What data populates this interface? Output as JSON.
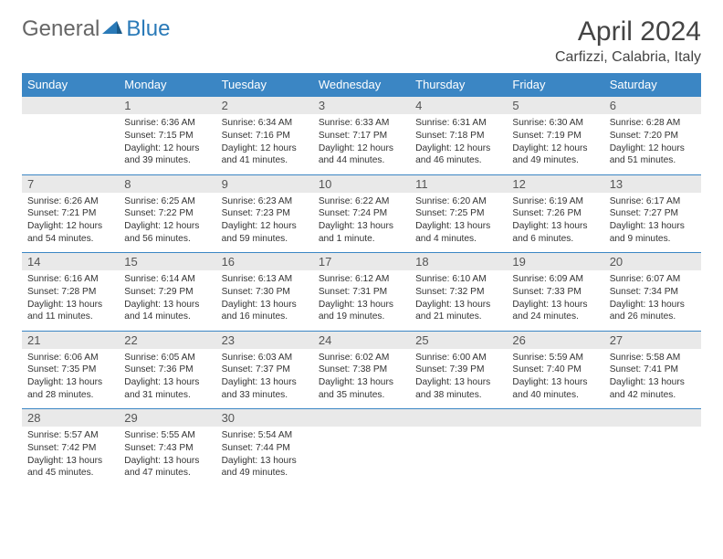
{
  "logo": {
    "text1": "General",
    "text2": "Blue"
  },
  "title": "April 2024",
  "location": "Carfizzi, Calabria, Italy",
  "colors": {
    "header_bg": "#3b86c4",
    "daynum_bg": "#e9e9e9",
    "border": "#3b86c4"
  },
  "weekdays": [
    "Sunday",
    "Monday",
    "Tuesday",
    "Wednesday",
    "Thursday",
    "Friday",
    "Saturday"
  ],
  "weeks": [
    {
      "nums": [
        "",
        "1",
        "2",
        "3",
        "4",
        "5",
        "6"
      ],
      "cells": [
        null,
        {
          "sr": "Sunrise: 6:36 AM",
          "ss": "Sunset: 7:15 PM",
          "d1": "Daylight: 12 hours",
          "d2": "and 39 minutes."
        },
        {
          "sr": "Sunrise: 6:34 AM",
          "ss": "Sunset: 7:16 PM",
          "d1": "Daylight: 12 hours",
          "d2": "and 41 minutes."
        },
        {
          "sr": "Sunrise: 6:33 AM",
          "ss": "Sunset: 7:17 PM",
          "d1": "Daylight: 12 hours",
          "d2": "and 44 minutes."
        },
        {
          "sr": "Sunrise: 6:31 AM",
          "ss": "Sunset: 7:18 PM",
          "d1": "Daylight: 12 hours",
          "d2": "and 46 minutes."
        },
        {
          "sr": "Sunrise: 6:30 AM",
          "ss": "Sunset: 7:19 PM",
          "d1": "Daylight: 12 hours",
          "d2": "and 49 minutes."
        },
        {
          "sr": "Sunrise: 6:28 AM",
          "ss": "Sunset: 7:20 PM",
          "d1": "Daylight: 12 hours",
          "d2": "and 51 minutes."
        }
      ]
    },
    {
      "nums": [
        "7",
        "8",
        "9",
        "10",
        "11",
        "12",
        "13"
      ],
      "cells": [
        {
          "sr": "Sunrise: 6:26 AM",
          "ss": "Sunset: 7:21 PM",
          "d1": "Daylight: 12 hours",
          "d2": "and 54 minutes."
        },
        {
          "sr": "Sunrise: 6:25 AM",
          "ss": "Sunset: 7:22 PM",
          "d1": "Daylight: 12 hours",
          "d2": "and 56 minutes."
        },
        {
          "sr": "Sunrise: 6:23 AM",
          "ss": "Sunset: 7:23 PM",
          "d1": "Daylight: 12 hours",
          "d2": "and 59 minutes."
        },
        {
          "sr": "Sunrise: 6:22 AM",
          "ss": "Sunset: 7:24 PM",
          "d1": "Daylight: 13 hours",
          "d2": "and 1 minute."
        },
        {
          "sr": "Sunrise: 6:20 AM",
          "ss": "Sunset: 7:25 PM",
          "d1": "Daylight: 13 hours",
          "d2": "and 4 minutes."
        },
        {
          "sr": "Sunrise: 6:19 AM",
          "ss": "Sunset: 7:26 PM",
          "d1": "Daylight: 13 hours",
          "d2": "and 6 minutes."
        },
        {
          "sr": "Sunrise: 6:17 AM",
          "ss": "Sunset: 7:27 PM",
          "d1": "Daylight: 13 hours",
          "d2": "and 9 minutes."
        }
      ]
    },
    {
      "nums": [
        "14",
        "15",
        "16",
        "17",
        "18",
        "19",
        "20"
      ],
      "cells": [
        {
          "sr": "Sunrise: 6:16 AM",
          "ss": "Sunset: 7:28 PM",
          "d1": "Daylight: 13 hours",
          "d2": "and 11 minutes."
        },
        {
          "sr": "Sunrise: 6:14 AM",
          "ss": "Sunset: 7:29 PM",
          "d1": "Daylight: 13 hours",
          "d2": "and 14 minutes."
        },
        {
          "sr": "Sunrise: 6:13 AM",
          "ss": "Sunset: 7:30 PM",
          "d1": "Daylight: 13 hours",
          "d2": "and 16 minutes."
        },
        {
          "sr": "Sunrise: 6:12 AM",
          "ss": "Sunset: 7:31 PM",
          "d1": "Daylight: 13 hours",
          "d2": "and 19 minutes."
        },
        {
          "sr": "Sunrise: 6:10 AM",
          "ss": "Sunset: 7:32 PM",
          "d1": "Daylight: 13 hours",
          "d2": "and 21 minutes."
        },
        {
          "sr": "Sunrise: 6:09 AM",
          "ss": "Sunset: 7:33 PM",
          "d1": "Daylight: 13 hours",
          "d2": "and 24 minutes."
        },
        {
          "sr": "Sunrise: 6:07 AM",
          "ss": "Sunset: 7:34 PM",
          "d1": "Daylight: 13 hours",
          "d2": "and 26 minutes."
        }
      ]
    },
    {
      "nums": [
        "21",
        "22",
        "23",
        "24",
        "25",
        "26",
        "27"
      ],
      "cells": [
        {
          "sr": "Sunrise: 6:06 AM",
          "ss": "Sunset: 7:35 PM",
          "d1": "Daylight: 13 hours",
          "d2": "and 28 minutes."
        },
        {
          "sr": "Sunrise: 6:05 AM",
          "ss": "Sunset: 7:36 PM",
          "d1": "Daylight: 13 hours",
          "d2": "and 31 minutes."
        },
        {
          "sr": "Sunrise: 6:03 AM",
          "ss": "Sunset: 7:37 PM",
          "d1": "Daylight: 13 hours",
          "d2": "and 33 minutes."
        },
        {
          "sr": "Sunrise: 6:02 AM",
          "ss": "Sunset: 7:38 PM",
          "d1": "Daylight: 13 hours",
          "d2": "and 35 minutes."
        },
        {
          "sr": "Sunrise: 6:00 AM",
          "ss": "Sunset: 7:39 PM",
          "d1": "Daylight: 13 hours",
          "d2": "and 38 minutes."
        },
        {
          "sr": "Sunrise: 5:59 AM",
          "ss": "Sunset: 7:40 PM",
          "d1": "Daylight: 13 hours",
          "d2": "and 40 minutes."
        },
        {
          "sr": "Sunrise: 5:58 AM",
          "ss": "Sunset: 7:41 PM",
          "d1": "Daylight: 13 hours",
          "d2": "and 42 minutes."
        }
      ]
    },
    {
      "nums": [
        "28",
        "29",
        "30",
        "",
        "",
        "",
        ""
      ],
      "cells": [
        {
          "sr": "Sunrise: 5:57 AM",
          "ss": "Sunset: 7:42 PM",
          "d1": "Daylight: 13 hours",
          "d2": "and 45 minutes."
        },
        {
          "sr": "Sunrise: 5:55 AM",
          "ss": "Sunset: 7:43 PM",
          "d1": "Daylight: 13 hours",
          "d2": "and 47 minutes."
        },
        {
          "sr": "Sunrise: 5:54 AM",
          "ss": "Sunset: 7:44 PM",
          "d1": "Daylight: 13 hours",
          "d2": "and 49 minutes."
        },
        null,
        null,
        null,
        null
      ]
    }
  ]
}
